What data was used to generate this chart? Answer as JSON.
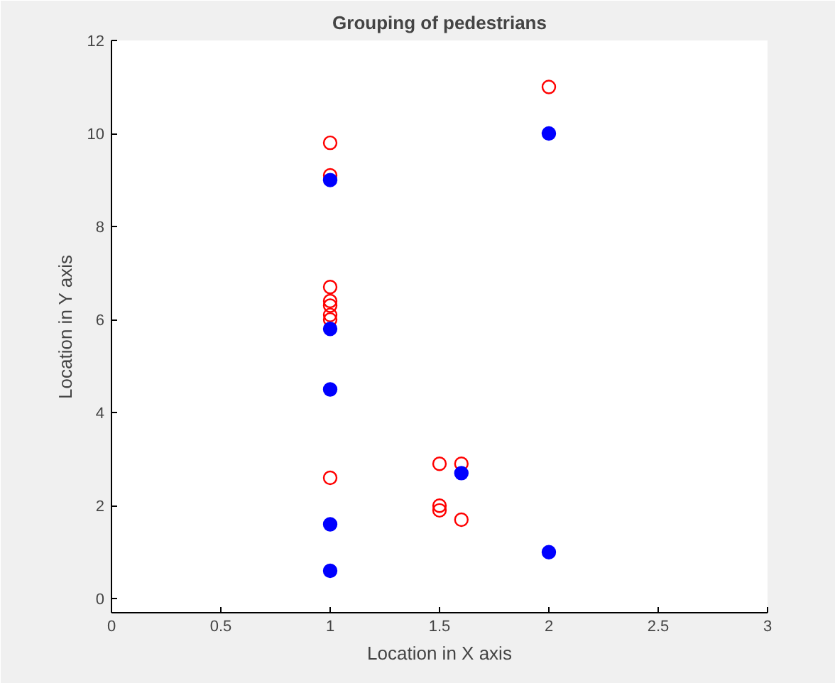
{
  "chart_data": {
    "type": "scatter",
    "title": "Grouping of pedestrians",
    "xlabel": "Location in X axis",
    "ylabel": "Location in Y axis",
    "xlim": [
      0,
      3
    ],
    "ylim": [
      -0.3,
      12
    ],
    "xticks": [
      0,
      0.5,
      1,
      1.5,
      2,
      2.5,
      3
    ],
    "yticks": [
      0,
      2,
      4,
      6,
      8,
      10,
      12
    ],
    "grid": false,
    "marker": "circle",
    "series": [
      {
        "color": "#ff0000",
        "x": [
          1,
          1,
          1,
          1,
          1,
          1,
          1,
          1,
          1.5,
          1.6,
          1.5,
          1.5,
          1.6,
          2
        ],
        "values": [
          9.8,
          9.1,
          6.7,
          6.4,
          6.3,
          6.1,
          6.0,
          2.6,
          2.9,
          2.9,
          2.0,
          1.9,
          1.7,
          11
        ]
      },
      {
        "color": "#0000ff",
        "x": [
          1,
          1,
          1,
          1,
          1,
          1.6,
          2,
          2
        ],
        "values": [
          9,
          5.8,
          4.5,
          1.6,
          0.6,
          2.7,
          10,
          1
        ]
      }
    ]
  }
}
